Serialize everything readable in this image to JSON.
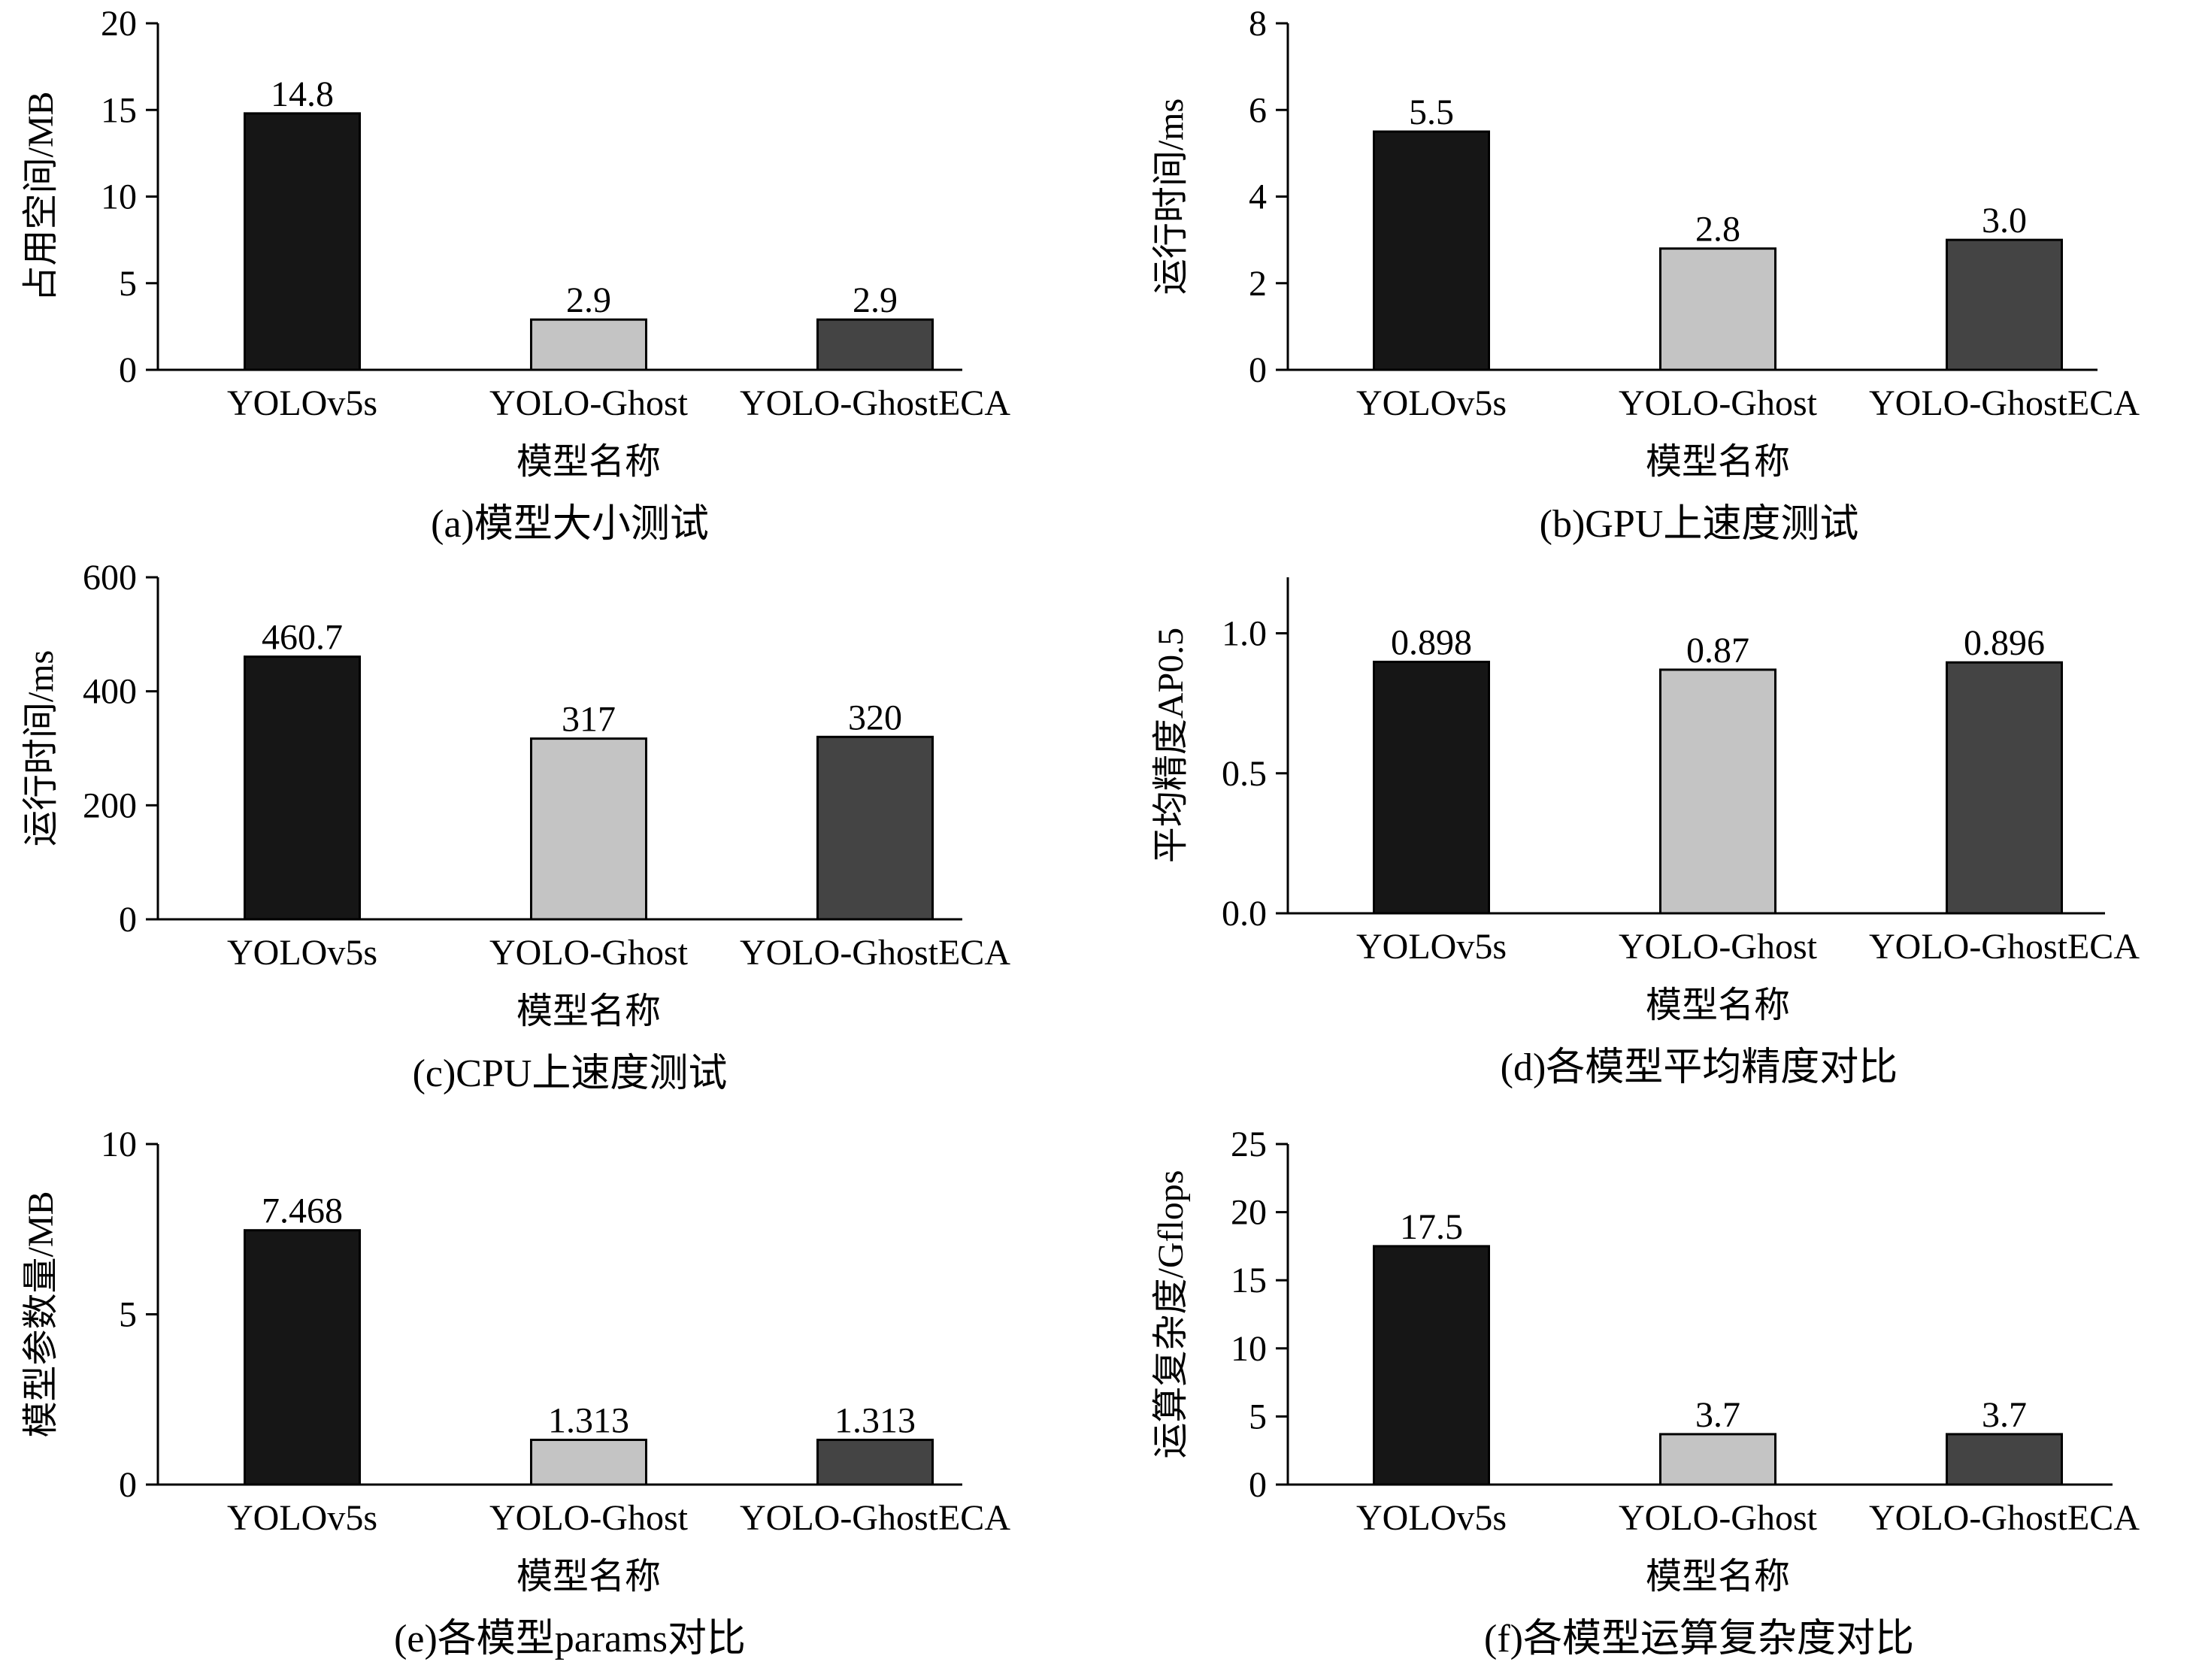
{
  "chart_data": [
    {
      "id": "a",
      "type": "bar",
      "caption": "(a)模型大小测试",
      "xlabel": "模型名称",
      "ylabel": "占用空间/MB",
      "categories": [
        "YOLOv5s",
        "YOLO-Ghost",
        "YOLO-GhostECA"
      ],
      "values": [
        14.8,
        2.9,
        2.9
      ],
      "value_labels": [
        "14.8",
        "2.9",
        "2.9"
      ],
      "ylim": [
        0,
        20
      ],
      "yticks": [
        0,
        5,
        10,
        15,
        20
      ],
      "ytick_labels": [
        "0",
        "5",
        "10",
        "15",
        "20"
      ],
      "bar_colors": [
        "#161616",
        "#c4c4c4",
        "#444444"
      ]
    },
    {
      "id": "b",
      "type": "bar",
      "caption": "(b)GPU上速度测试",
      "xlabel": "模型名称",
      "ylabel": "运行时间/ms",
      "categories": [
        "YOLOv5s",
        "YOLO-Ghost",
        "YOLO-GhostECA"
      ],
      "values": [
        5.5,
        2.8,
        3.0
      ],
      "value_labels": [
        "5.5",
        "2.8",
        "3.0"
      ],
      "ylim": [
        0,
        8
      ],
      "yticks": [
        0,
        2,
        4,
        6,
        8
      ],
      "ytick_labels": [
        "0",
        "2",
        "4",
        "6",
        "8"
      ],
      "bar_colors": [
        "#161616",
        "#c4c4c4",
        "#444444"
      ]
    },
    {
      "id": "c",
      "type": "bar",
      "caption": "(c)CPU上速度测试",
      "xlabel": "模型名称",
      "ylabel": "运行时间/ms",
      "categories": [
        "YOLOv5s",
        "YOLO-Ghost",
        "YOLO-GhostECA"
      ],
      "values": [
        460.7,
        317,
        320
      ],
      "value_labels": [
        "460.7",
        "317",
        "320"
      ],
      "ylim": [
        0,
        600
      ],
      "yticks": [
        0,
        200,
        400,
        600
      ],
      "ytick_labels": [
        "0",
        "200",
        "400",
        "600"
      ],
      "bar_colors": [
        "#161616",
        "#c4c4c4",
        "#444444"
      ]
    },
    {
      "id": "d",
      "type": "bar",
      "caption": "(d)各模型平均精度对比",
      "xlabel": "模型名称",
      "ylabel": "平均精度AP0.5",
      "categories": [
        "YOLOv5s",
        "YOLO-Ghost",
        "YOLO-GhostECA"
      ],
      "values": [
        0.898,
        0.87,
        0.896
      ],
      "value_labels": [
        "0.898",
        "0.87",
        "0.896"
      ],
      "ylim": [
        0,
        1.2
      ],
      "yticks": [
        0,
        0.5,
        1.0
      ],
      "ytick_labels": [
        "0.0",
        "0.5",
        "1.0"
      ],
      "bar_colors": [
        "#161616",
        "#c4c4c4",
        "#444444"
      ]
    },
    {
      "id": "e",
      "type": "bar",
      "caption": "(e)各模型params对比",
      "xlabel": "模型名称",
      "ylabel": "模型参数量/MB",
      "categories": [
        "YOLOv5s",
        "YOLO-Ghost",
        "YOLO-GhostECA"
      ],
      "values": [
        7.468,
        1.313,
        1.313
      ],
      "value_labels": [
        "7.468",
        "1.313",
        "1.313"
      ],
      "ylim": [
        0,
        10
      ],
      "yticks": [
        0,
        5,
        10
      ],
      "ytick_labels": [
        "0",
        "5",
        "10"
      ],
      "bar_colors": [
        "#161616",
        "#c4c4c4",
        "#444444"
      ]
    },
    {
      "id": "f",
      "type": "bar",
      "caption": "(f)各模型运算复杂度对比",
      "xlabel": "模型名称",
      "ylabel": "运算复杂度/Gflops",
      "categories": [
        "YOLOv5s",
        "YOLO-Ghost",
        "YOLO-GhostECA"
      ],
      "values": [
        17.5,
        3.7,
        3.7
      ],
      "value_labels": [
        "17.5",
        "3.7",
        "3.7"
      ],
      "ylim": [
        0,
        25
      ],
      "yticks": [
        0,
        5,
        10,
        15,
        20,
        25
      ],
      "ytick_labels": [
        "0",
        "5",
        "10",
        "15",
        "20",
        "25"
      ],
      "bar_colors": [
        "#161616",
        "#c4c4c4",
        "#444444"
      ]
    }
  ]
}
